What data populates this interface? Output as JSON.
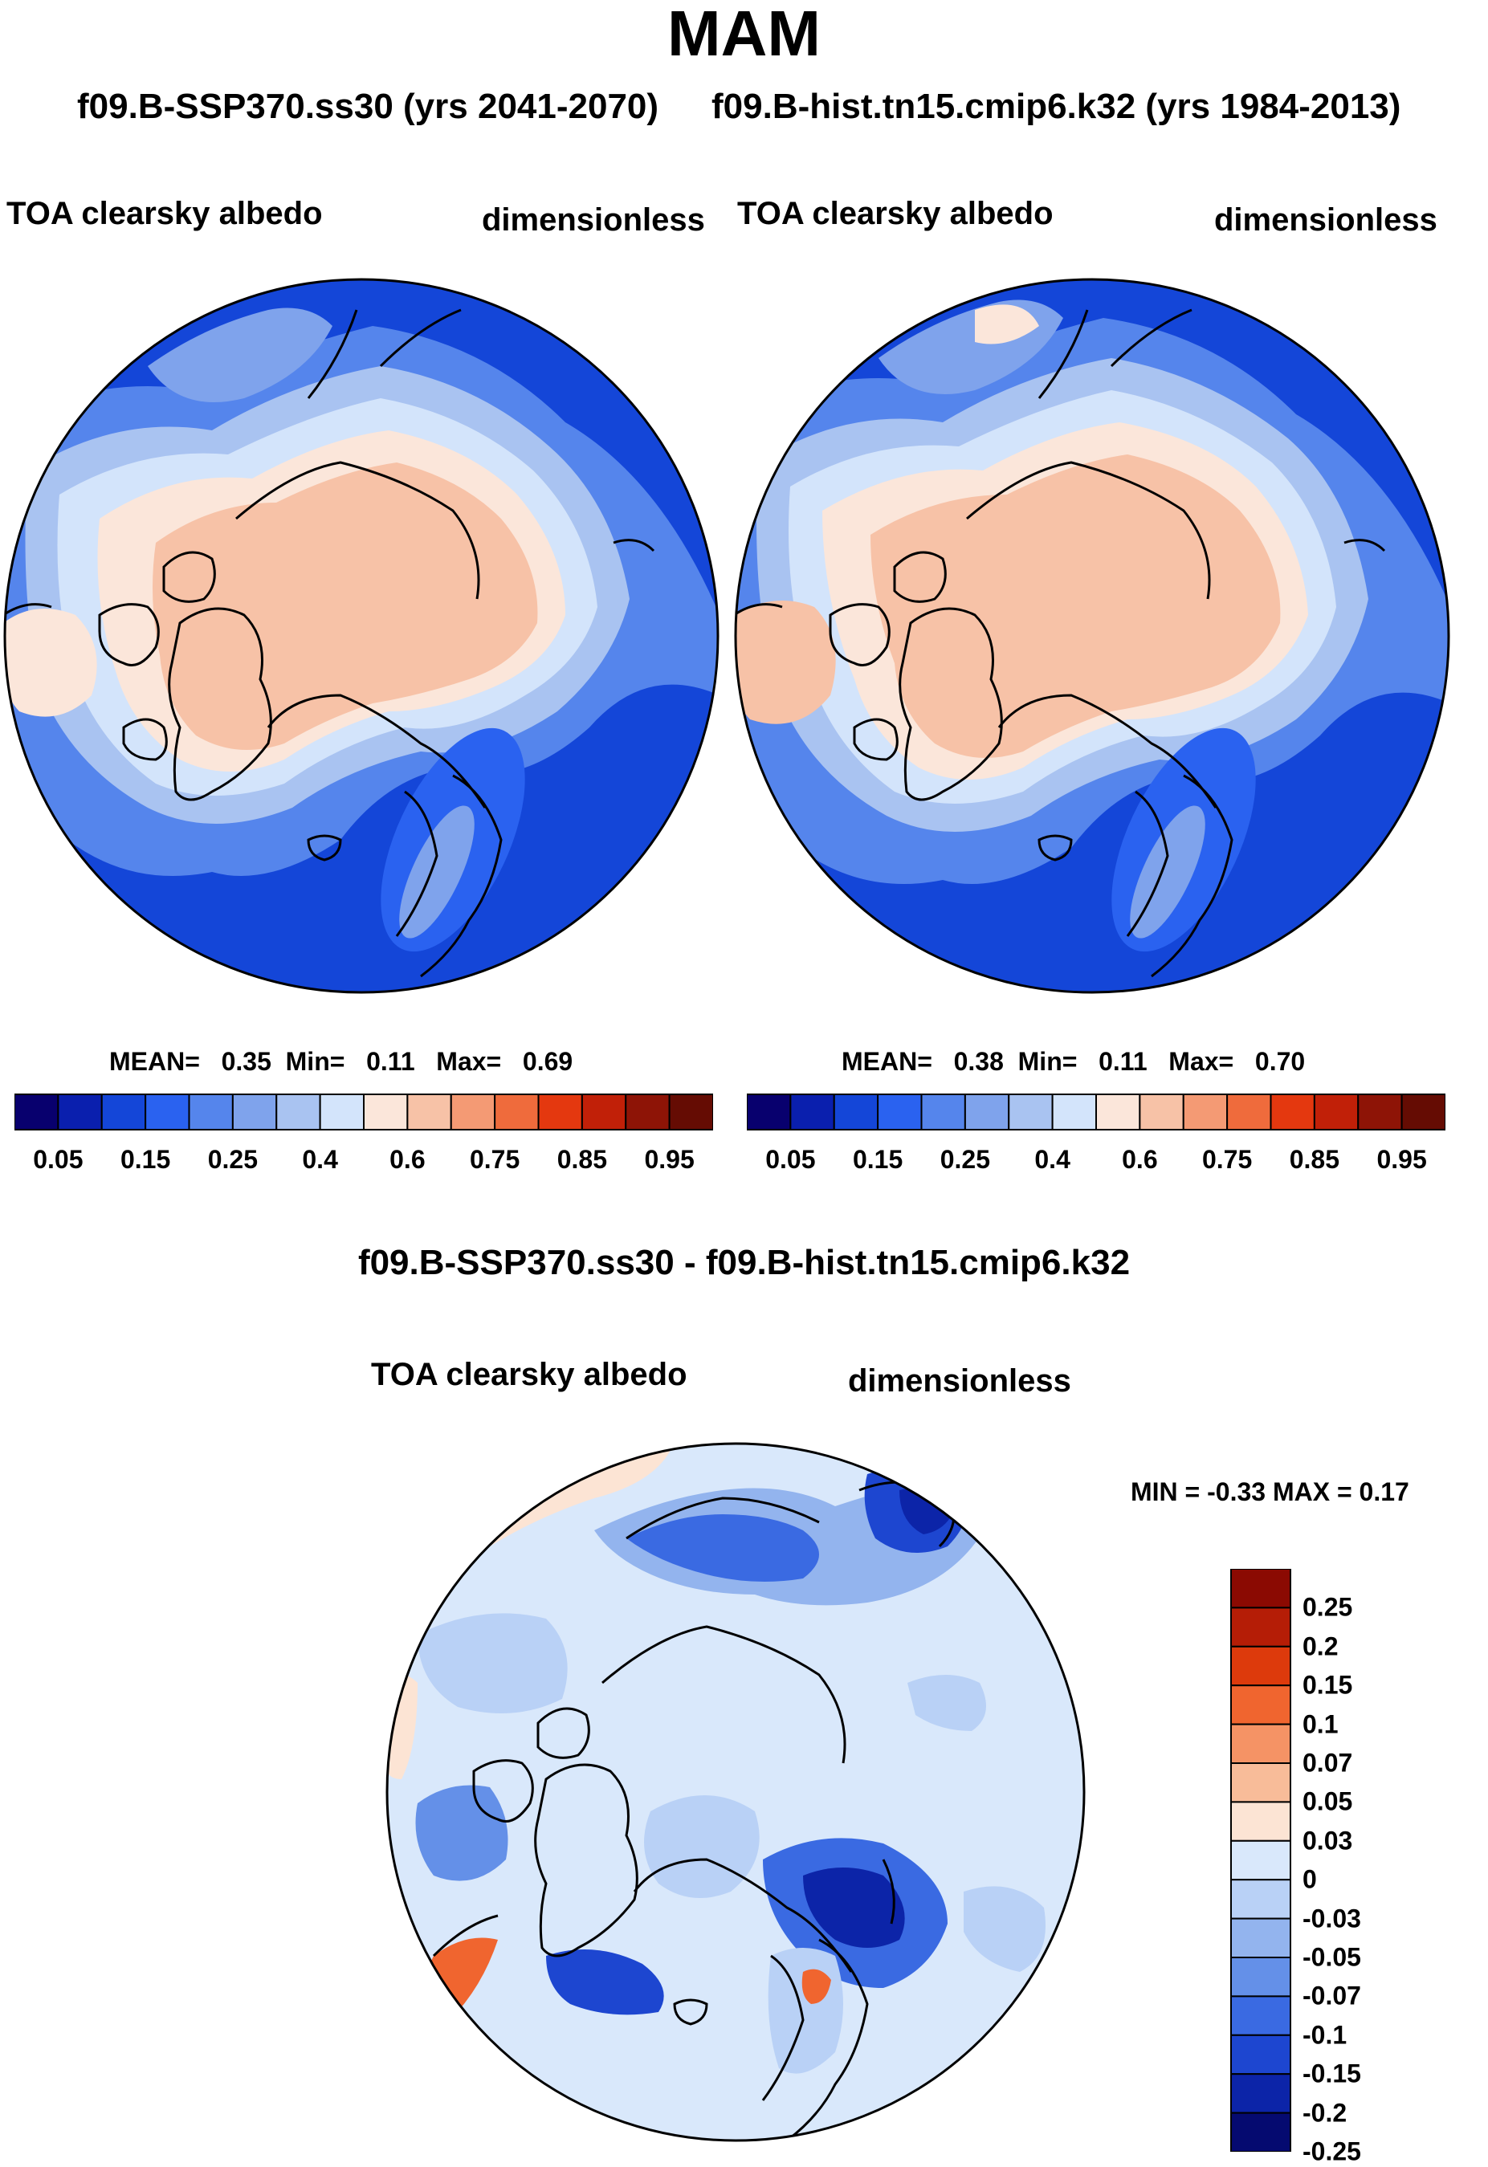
{
  "season_title": "MAM",
  "subtitles": {
    "left": "f09.B-SSP370.ss30 (yrs 2041-2070)",
    "right": "f09.B-hist.tn15.cmip6.k32 (yrs 1984-2013)"
  },
  "panels": [
    {
      "variable": "TOA clearsky albedo",
      "units": "dimensionless",
      "stats": {
        "mean_label": "MEAN=",
        "mean": "0.35",
        "min_label": "Min=",
        "min": "0.11",
        "max_label": "Max=",
        "max": "0.69"
      }
    },
    {
      "variable": "TOA clearsky albedo",
      "units": "dimensionless",
      "stats": {
        "mean_label": "MEAN=",
        "mean": "0.38",
        "min_label": "Min=",
        "min": "0.11",
        "max_label": "Max=",
        "max": "0.70"
      }
    }
  ],
  "colorbar_top": {
    "colors": [
      "#08006e",
      "#0a1fae",
      "#1446d8",
      "#2a62f0",
      "#5585ec",
      "#7fa3ec",
      "#a9c3f1",
      "#d3e4fb",
      "#fbe6da",
      "#f7c2a7",
      "#f49a74",
      "#ef6b3c",
      "#e4380f",
      "#c12008",
      "#8e1406",
      "#650c03"
    ],
    "tick_labels": [
      "0.05",
      "0.15",
      "0.25",
      "0.4",
      "0.6",
      "0.75",
      "0.85",
      "0.95"
    ]
  },
  "difference": {
    "title": "f09.B-SSP370.ss30 - f09.B-hist.tn15.cmip6.k32",
    "variable": "TOA clearsky albedo",
    "units": "dimensionless",
    "minmax": "MIN =  -0.33 MAX =   0.17",
    "colorbar": {
      "colors_top_to_bottom": [
        "#8b0a02",
        "#b51d06",
        "#dd3a0c",
        "#f0652f",
        "#f59365",
        "#f8bc99",
        "#fce4d4",
        "#d9e8fb",
        "#b9d1f6",
        "#93b4ee",
        "#6490e8",
        "#3a6ae2",
        "#1d46d0",
        "#0c24a8",
        "#050a70"
      ],
      "tick_labels": [
        "0.25",
        "0.2",
        "0.15",
        "0.1",
        "0.07",
        "0.05",
        "0.03",
        "0",
        "-0.03",
        "-0.05",
        "-0.07",
        "-0.1",
        "-0.15",
        "-0.2",
        "-0.25"
      ]
    }
  }
}
